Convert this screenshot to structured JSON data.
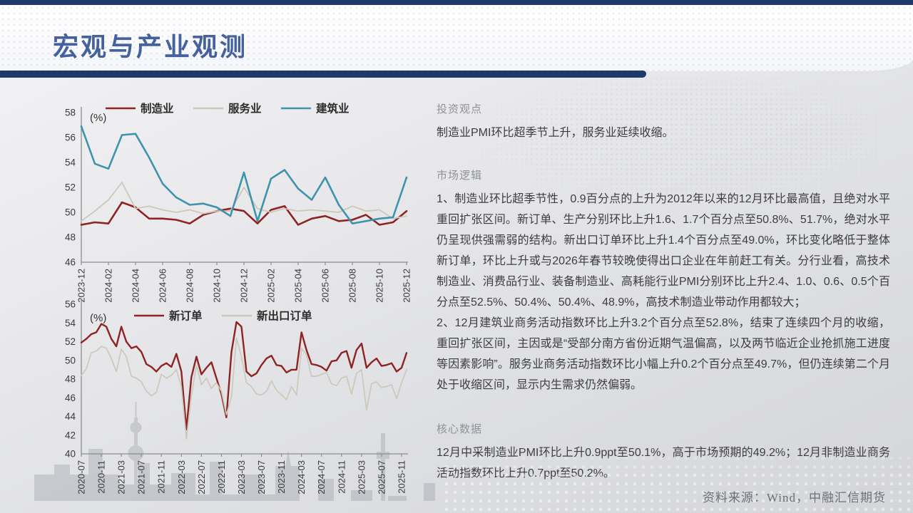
{
  "header": {
    "title": "宏观与产业观测"
  },
  "sections": {
    "viewpoint": {
      "heading": "投资观点",
      "body": "制造业PMI环比超季节上升，服务业延续收缩。"
    },
    "logic": {
      "heading": "市场逻辑",
      "items": [
        "1、制造业环比超季节性，0.9百分点的上升为2012年以来的12月环比最高值，且绝对水平重回扩张区间。新订单、生产分别环比上升1.6、1.7个百分点至50.8%、51.7%，绝对水平仍呈现供强需弱的结构。新出口订单环比上升1.4个百分点至49.0%，环比变化略低于整体新订单，环比上升或与2026年春节较晚使得出口企业在年前赶工有关。分行业看，高技术制造业、消费品行业、装备制造业、高耗能行业PMI分别环比上升2.4、1.0、0.6、0.5个百分点至52.5%、50.4%、50.4%、48.9%，高技术制造业带动作用都较大；",
        "2、12月建筑业商务活动指数环比上升3.2个百分点至52.8%，结束了连续四个月的收缩，重回扩张区间，主因或是“受部分南方省份近期气温偏高，以及两节临近企业抢抓施工进度等因素影响”。服务业商务活动指数环比小幅上升0.2个百分点至49.7%，但仍连续第二个月处于收缩区间，显示内生需求仍然偏弱。"
      ]
    },
    "core": {
      "heading": "核心数据",
      "body": "12月中采制造业PMI环比上升0.9ppt至50.1%，高于市场预期的49.2%；12月非制造业商务活动指数环比上升0.7ppt至50.2%。"
    }
  },
  "source_note": "资料来源：Wind，中融汇信期货",
  "colors": {
    "accent_navy": "#1f3a68",
    "title_blue": "#44619d",
    "manufacturing_red": "#8e2323",
    "services_gray": "#ccc8ba",
    "construction_teal": "#3f93ac"
  },
  "chart_data": [
    {
      "type": "line",
      "unit_label": "(%)",
      "ylim": [
        46,
        58
      ],
      "ytick_step": 2,
      "x_tick_every": 2,
      "legend_position": "top",
      "grid": false,
      "x": [
        "2023-12",
        "2024-01",
        "2024-02",
        "2024-03",
        "2024-04",
        "2024-05",
        "2024-06",
        "2024-07",
        "2024-08",
        "2024-09",
        "2024-10",
        "2024-11",
        "2024-12",
        "2025-01",
        "2025-02",
        "2025-03",
        "2025-04",
        "2025-05",
        "2025-06",
        "2025-07",
        "2025-08",
        "2025-09",
        "2025-10",
        "2025-11",
        "2025-12"
      ],
      "series": [
        {
          "name": "制造业",
          "color": "#8e2323",
          "width": 2.6,
          "values": [
            49.0,
            49.2,
            49.1,
            50.8,
            50.4,
            49.5,
            49.5,
            49.4,
            49.1,
            49.8,
            50.1,
            50.3,
            50.1,
            49.1,
            50.2,
            50.5,
            49.0,
            49.5,
            49.7,
            49.3,
            49.4,
            49.8,
            49.0,
            49.2,
            50.1
          ]
        },
        {
          "name": "服务业",
          "color": "#ccc8ba",
          "width": 1.8,
          "values": [
            49.3,
            50.1,
            51.0,
            52.4,
            50.3,
            50.5,
            50.2,
            50.0,
            50.2,
            49.9,
            50.1,
            50.1,
            52.0,
            50.3,
            50.0,
            50.3,
            50.1,
            50.2,
            50.1,
            50.0,
            50.5,
            50.1,
            50.2,
            49.5,
            49.7
          ]
        },
        {
          "name": "建筑业",
          "color": "#3f93ac",
          "width": 2.6,
          "values": [
            56.9,
            53.9,
            53.5,
            56.2,
            56.3,
            54.4,
            52.3,
            51.2,
            50.6,
            50.7,
            50.4,
            49.7,
            53.2,
            49.3,
            52.7,
            53.4,
            51.9,
            51.0,
            52.8,
            50.6,
            49.1,
            49.3,
            49.5,
            49.6,
            52.8
          ]
        }
      ]
    },
    {
      "type": "line",
      "unit_label": "(%)",
      "ylim": [
        40,
        56
      ],
      "ytick_step": 2,
      "x_tick_every": 4,
      "legend_position": "top",
      "grid": false,
      "x": [
        "2020-07",
        "2020-08",
        "2020-09",
        "2020-10",
        "2020-11",
        "2020-12",
        "2021-01",
        "2021-02",
        "2021-03",
        "2021-04",
        "2021-05",
        "2021-06",
        "2021-07",
        "2021-08",
        "2021-09",
        "2021-10",
        "2021-11",
        "2021-12",
        "2022-01",
        "2022-02",
        "2022-03",
        "2022-04",
        "2022-05",
        "2022-06",
        "2022-07",
        "2022-08",
        "2022-09",
        "2022-10",
        "2022-11",
        "2022-12",
        "2023-01",
        "2023-02",
        "2023-03",
        "2023-04",
        "2023-05",
        "2023-06",
        "2023-07",
        "2023-08",
        "2023-09",
        "2023-10",
        "2023-11",
        "2023-12",
        "2024-01",
        "2024-02",
        "2024-03",
        "2024-04",
        "2024-05",
        "2024-06",
        "2024-07",
        "2024-08",
        "2024-09",
        "2024-10",
        "2024-11",
        "2024-12",
        "2025-01",
        "2025-02",
        "2025-03",
        "2025-04",
        "2025-05",
        "2025-06",
        "2025-07",
        "2025-08",
        "2025-09",
        "2025-10",
        "2025-11",
        "2025-12"
      ],
      "series": [
        {
          "name": "新订单",
          "color": "#8e2323",
          "width": 2.4,
          "values": [
            51.9,
            52.3,
            52.8,
            53.0,
            53.9,
            53.6,
            52.3,
            51.5,
            53.6,
            52.0,
            51.3,
            51.5,
            50.9,
            49.6,
            49.3,
            48.8,
            49.4,
            49.7,
            49.3,
            50.7,
            48.8,
            42.6,
            48.2,
            50.4,
            48.5,
            49.2,
            49.8,
            48.1,
            46.4,
            43.9,
            50.9,
            54.1,
            53.6,
            48.8,
            48.3,
            48.6,
            49.5,
            50.2,
            50.5,
            49.5,
            49.4,
            48.7,
            49.0,
            49.0,
            53.0,
            51.1,
            49.6,
            49.5,
            49.3,
            48.9,
            49.9,
            50.0,
            50.8,
            51.0,
            49.2,
            51.1,
            51.8,
            49.2,
            49.8,
            50.2,
            49.4,
            49.5,
            49.7,
            48.8,
            49.2,
            50.8
          ]
        },
        {
          "name": "新出口订单",
          "color": "#ccc8ba",
          "width": 1.7,
          "values": [
            48.4,
            49.1,
            50.8,
            51.0,
            51.5,
            51.3,
            50.2,
            48.8,
            51.2,
            50.4,
            48.3,
            48.1,
            47.7,
            46.7,
            46.2,
            46.6,
            48.5,
            48.1,
            48.4,
            49.0,
            47.2,
            41.6,
            46.2,
            49.5,
            47.4,
            48.1,
            47.0,
            47.6,
            46.7,
            44.2,
            46.1,
            52.4,
            50.4,
            47.6,
            47.2,
            46.4,
            46.3,
            46.7,
            47.8,
            46.8,
            46.3,
            45.8,
            47.2,
            46.3,
            51.3,
            50.6,
            48.3,
            48.3,
            48.5,
            48.7,
            47.5,
            47.3,
            48.1,
            48.3,
            46.4,
            48.6,
            49.0,
            44.7,
            47.5,
            47.7,
            47.1,
            47.2,
            47.4,
            45.9,
            47.6,
            49.0
          ]
        }
      ]
    }
  ]
}
